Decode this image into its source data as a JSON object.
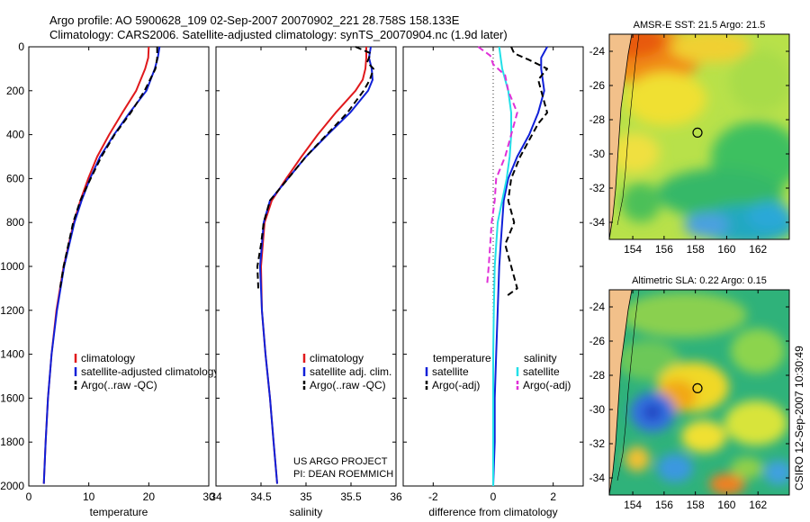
{
  "header": {
    "line1": "Argo profile: AO 5900628_109 02-Sep-2007 20070902_221 28.758S 158.133E",
    "line2": "Climatology: CARS2006. Satellite-adjusted climatology: synTS_20070904.nc (1.9d later)"
  },
  "side_label": "CSIRO 12-Sep-2007 10:30:49",
  "credit": {
    "line1": "US ARGO PROJECT",
    "line2": "PI: DEAN ROEMMICH"
  },
  "colors": {
    "climatology": "#e0191c",
    "satellite": "#1020d8",
    "argo": "#000000",
    "sal_sat": "#22e0e8",
    "sal_argo": "#e030d8",
    "land": "#f2c08a",
    "circle": "#000000"
  },
  "chart_data": [
    {
      "type": "line",
      "id": "temperature",
      "xlabel": "temperature",
      "xlim": [
        0,
        30
      ],
      "xticks": [
        "0",
        "10",
        "20",
        "30"
      ],
      "ylim": [
        0,
        2000
      ],
      "y_reversed": true,
      "yticks": [
        "0",
        "200",
        "400",
        "600",
        "800",
        "1000",
        "1200",
        "1400",
        "1600",
        "1800",
        "2000"
      ],
      "legend": [
        "climatology",
        "satellite-adjusted climatology",
        "Argo(..raw -QC)"
      ],
      "series": [
        {
          "name": "climatology",
          "style": "solid",
          "color": "#e0191c",
          "depth": [
            0,
            50,
            100,
            200,
            300,
            400,
            500,
            600,
            700,
            800,
            1000,
            1200,
            1400,
            1600,
            1800,
            1990
          ],
          "values": [
            20.0,
            19.9,
            19.4,
            17.9,
            15.6,
            13.4,
            11.4,
            9.9,
            8.6,
            7.5,
            5.8,
            4.6,
            3.8,
            3.2,
            2.8,
            2.5
          ]
        },
        {
          "name": "satellite-adjusted climatology",
          "style": "solid",
          "color": "#1020d8",
          "depth": [
            0,
            50,
            100,
            200,
            300,
            400,
            500,
            600,
            700,
            800,
            1000,
            1200,
            1400,
            1600,
            1800,
            1990
          ],
          "values": [
            21.8,
            21.5,
            21.0,
            19.6,
            16.8,
            14.2,
            11.9,
            10.2,
            8.8,
            7.6,
            5.9,
            4.7,
            3.8,
            3.2,
            2.8,
            2.5
          ]
        },
        {
          "name": "Argo(..raw -QC)",
          "style": "dashed",
          "color": "#000000",
          "depth": [
            0,
            50,
            100,
            200,
            300,
            400,
            500,
            600,
            700,
            800,
            1000,
            1100
          ],
          "values": [
            21.4,
            21.4,
            21.1,
            19.3,
            17.0,
            14.3,
            12.1,
            10.3,
            8.6,
            7.4,
            5.8,
            5.2
          ]
        }
      ]
    },
    {
      "type": "line",
      "id": "salinity",
      "xlabel": "salinity",
      "xlim": [
        34,
        36
      ],
      "xticks": [
        "34",
        "34.5",
        "35",
        "35.5",
        "36"
      ],
      "ylim": [
        0,
        2000
      ],
      "y_reversed": true,
      "legend": [
        "climatology",
        "satellite adj. clim.",
        "Argo(..raw -QC)"
      ],
      "series": [
        {
          "name": "climatology",
          "style": "solid",
          "color": "#e0191c",
          "depth": [
            0,
            50,
            100,
            150,
            200,
            300,
            400,
            500,
            600,
            700,
            800,
            1000,
            1200,
            1400,
            1600,
            1800,
            1990
          ],
          "values": [
            35.67,
            35.67,
            35.66,
            35.63,
            35.55,
            35.33,
            35.13,
            34.95,
            34.78,
            34.62,
            34.54,
            34.5,
            34.51,
            34.55,
            34.6,
            34.64,
            34.68
          ]
        },
        {
          "name": "satellite adj. clim.",
          "style": "solid",
          "color": "#1020d8",
          "depth": [
            0,
            50,
            100,
            150,
            200,
            300,
            400,
            500,
            600,
            700,
            800,
            1000,
            1200,
            1400,
            1600,
            1800,
            1990
          ],
          "values": [
            35.72,
            35.7,
            35.73,
            35.74,
            35.69,
            35.49,
            35.24,
            35.0,
            34.8,
            34.6,
            34.53,
            34.49,
            34.51,
            34.55,
            34.6,
            34.64,
            34.68
          ]
        },
        {
          "name": "Argo(..raw -QC)",
          "style": "dashed",
          "color": "#000000",
          "depth": [
            0,
            30,
            70,
            100,
            150,
            200,
            300,
            400,
            500,
            600,
            700,
            800,
            900,
            1000,
            1100
          ],
          "values": [
            35.55,
            35.72,
            35.68,
            35.75,
            35.71,
            35.64,
            35.46,
            35.23,
            35.0,
            34.8,
            34.6,
            34.53,
            34.5,
            34.46,
            34.47
          ]
        }
      ]
    },
    {
      "type": "line",
      "id": "difference",
      "xlabel": "difference from climatology",
      "xlim": [
        -3,
        3
      ],
      "xticks": [
        "-2",
        "0",
        "2"
      ],
      "ylim": [
        0,
        2000
      ],
      "y_reversed": true,
      "legend_temperature": {
        "title": "temperature",
        "items": [
          "satellite",
          "Argo(-adj)"
        ]
      },
      "legend_salinity": {
        "title": "salinity",
        "items": [
          "satellite",
          "Argo(-adj)"
        ]
      },
      "series": [
        {
          "name": "temperature satellite",
          "style": "solid",
          "color": "#1020d8",
          "depth": [
            0,
            50,
            100,
            200,
            300,
            400,
            500,
            600,
            700,
            800,
            900,
            1000,
            1200,
            1400,
            1600,
            1800,
            2000
          ],
          "values": [
            1.8,
            1.6,
            1.6,
            1.7,
            1.5,
            1.2,
            0.8,
            0.5,
            0.35,
            0.3,
            0.25,
            0.2,
            0.15,
            0.1,
            0.05,
            0.05,
            0.0
          ]
        },
        {
          "name": "temperature Argo(-adj)",
          "style": "dashed",
          "color": "#000000",
          "depth": [
            0,
            30,
            60,
            100,
            150,
            200,
            300,
            350,
            400,
            500,
            600,
            700,
            800,
            900,
            1000,
            1100,
            1140
          ],
          "values": [
            0.6,
            0.7,
            1.2,
            1.8,
            1.5,
            1.6,
            1.8,
            1.5,
            1.3,
            0.9,
            0.6,
            0.5,
            0.7,
            0.4,
            0.6,
            0.8,
            0.4
          ]
        },
        {
          "name": "salinity satellite",
          "style": "solid",
          "color": "#22e0e8",
          "depth": [
            0,
            50,
            100,
            200,
            300,
            400,
            500,
            600,
            700,
            800,
            1000,
            1200,
            1400,
            1600,
            1800,
            2000
          ],
          "values": [
            0.2,
            0.25,
            0.3,
            0.5,
            0.6,
            0.6,
            0.55,
            0.45,
            0.3,
            0.15,
            0.05,
            0.02,
            0.0,
            0.0,
            0.0,
            0.0
          ]
        },
        {
          "name": "salinity Argo(-adj)",
          "style": "dashed",
          "color": "#e030d8",
          "depth": [
            0,
            40,
            80,
            130,
            200,
            300,
            400,
            500,
            600,
            700,
            800,
            900,
            1000,
            1080
          ],
          "values": [
            -0.5,
            -0.1,
            0.0,
            0.4,
            0.5,
            0.8,
            0.6,
            0.4,
            0.1,
            0.05,
            -0.05,
            -0.1,
            -0.15,
            -0.2
          ]
        }
      ]
    },
    {
      "type": "heatmap",
      "id": "sst_map",
      "title": "AMSR-E SST: 21.5 Argo: 21.5",
      "xlim": [
        152.5,
        164
      ],
      "ylim": [
        -35,
        -23
      ],
      "xticks": [
        "154",
        "156",
        "158",
        "160",
        "162"
      ],
      "yticks": [
        "-24",
        "-26",
        "-28",
        "-30",
        "-32",
        "-34"
      ],
      "float_position": {
        "lon": 158.133,
        "lat": -28.758
      }
    },
    {
      "type": "heatmap",
      "id": "sla_map",
      "title": "Altimetric SLA: 0.22 Argo: 0.15",
      "xlim": [
        152.5,
        164
      ],
      "ylim": [
        -35,
        -23
      ],
      "xticks": [
        "154",
        "156",
        "158",
        "160",
        "162"
      ],
      "yticks": [
        "-24",
        "-26",
        "-28",
        "-30",
        "-32",
        "-34"
      ],
      "float_position": {
        "lon": 158.133,
        "lat": -28.758
      }
    }
  ]
}
